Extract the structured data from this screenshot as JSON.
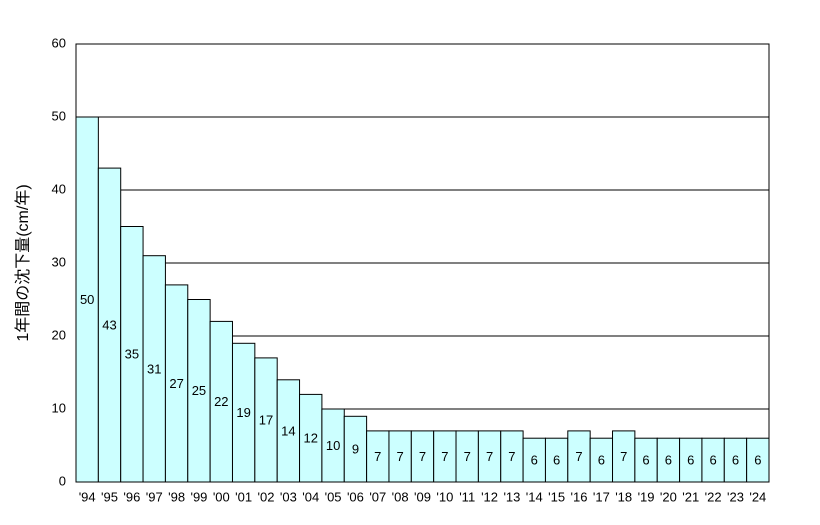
{
  "chart_data": {
    "type": "bar",
    "y_label": "1年間の沈下量(cm/年)",
    "categories": [
      "'94",
      "'95",
      "'96",
      "'97",
      "'98",
      "'99",
      "'00",
      "'01",
      "'02",
      "'03",
      "'04",
      "'05",
      "'06",
      "'07",
      "'08",
      "'09",
      "'10",
      "'11",
      "'12",
      "'13",
      "'14",
      "'15",
      "'16",
      "'17",
      "'18",
      "'19",
      "'20",
      "'21",
      "'22",
      "'23",
      "'24"
    ],
    "values": [
      50,
      43,
      35,
      31,
      27,
      25,
      22,
      19,
      17,
      14,
      12,
      10,
      9,
      7,
      7,
      7,
      7,
      7,
      7,
      7,
      6,
      6,
      7,
      6,
      7,
      6,
      6,
      6,
      6,
      6,
      6
    ],
    "color": "#ccffff",
    "ylim": [
      0,
      60
    ],
    "yticks": [
      0,
      10,
      20,
      30,
      40,
      50,
      60
    ],
    "grid": true
  }
}
